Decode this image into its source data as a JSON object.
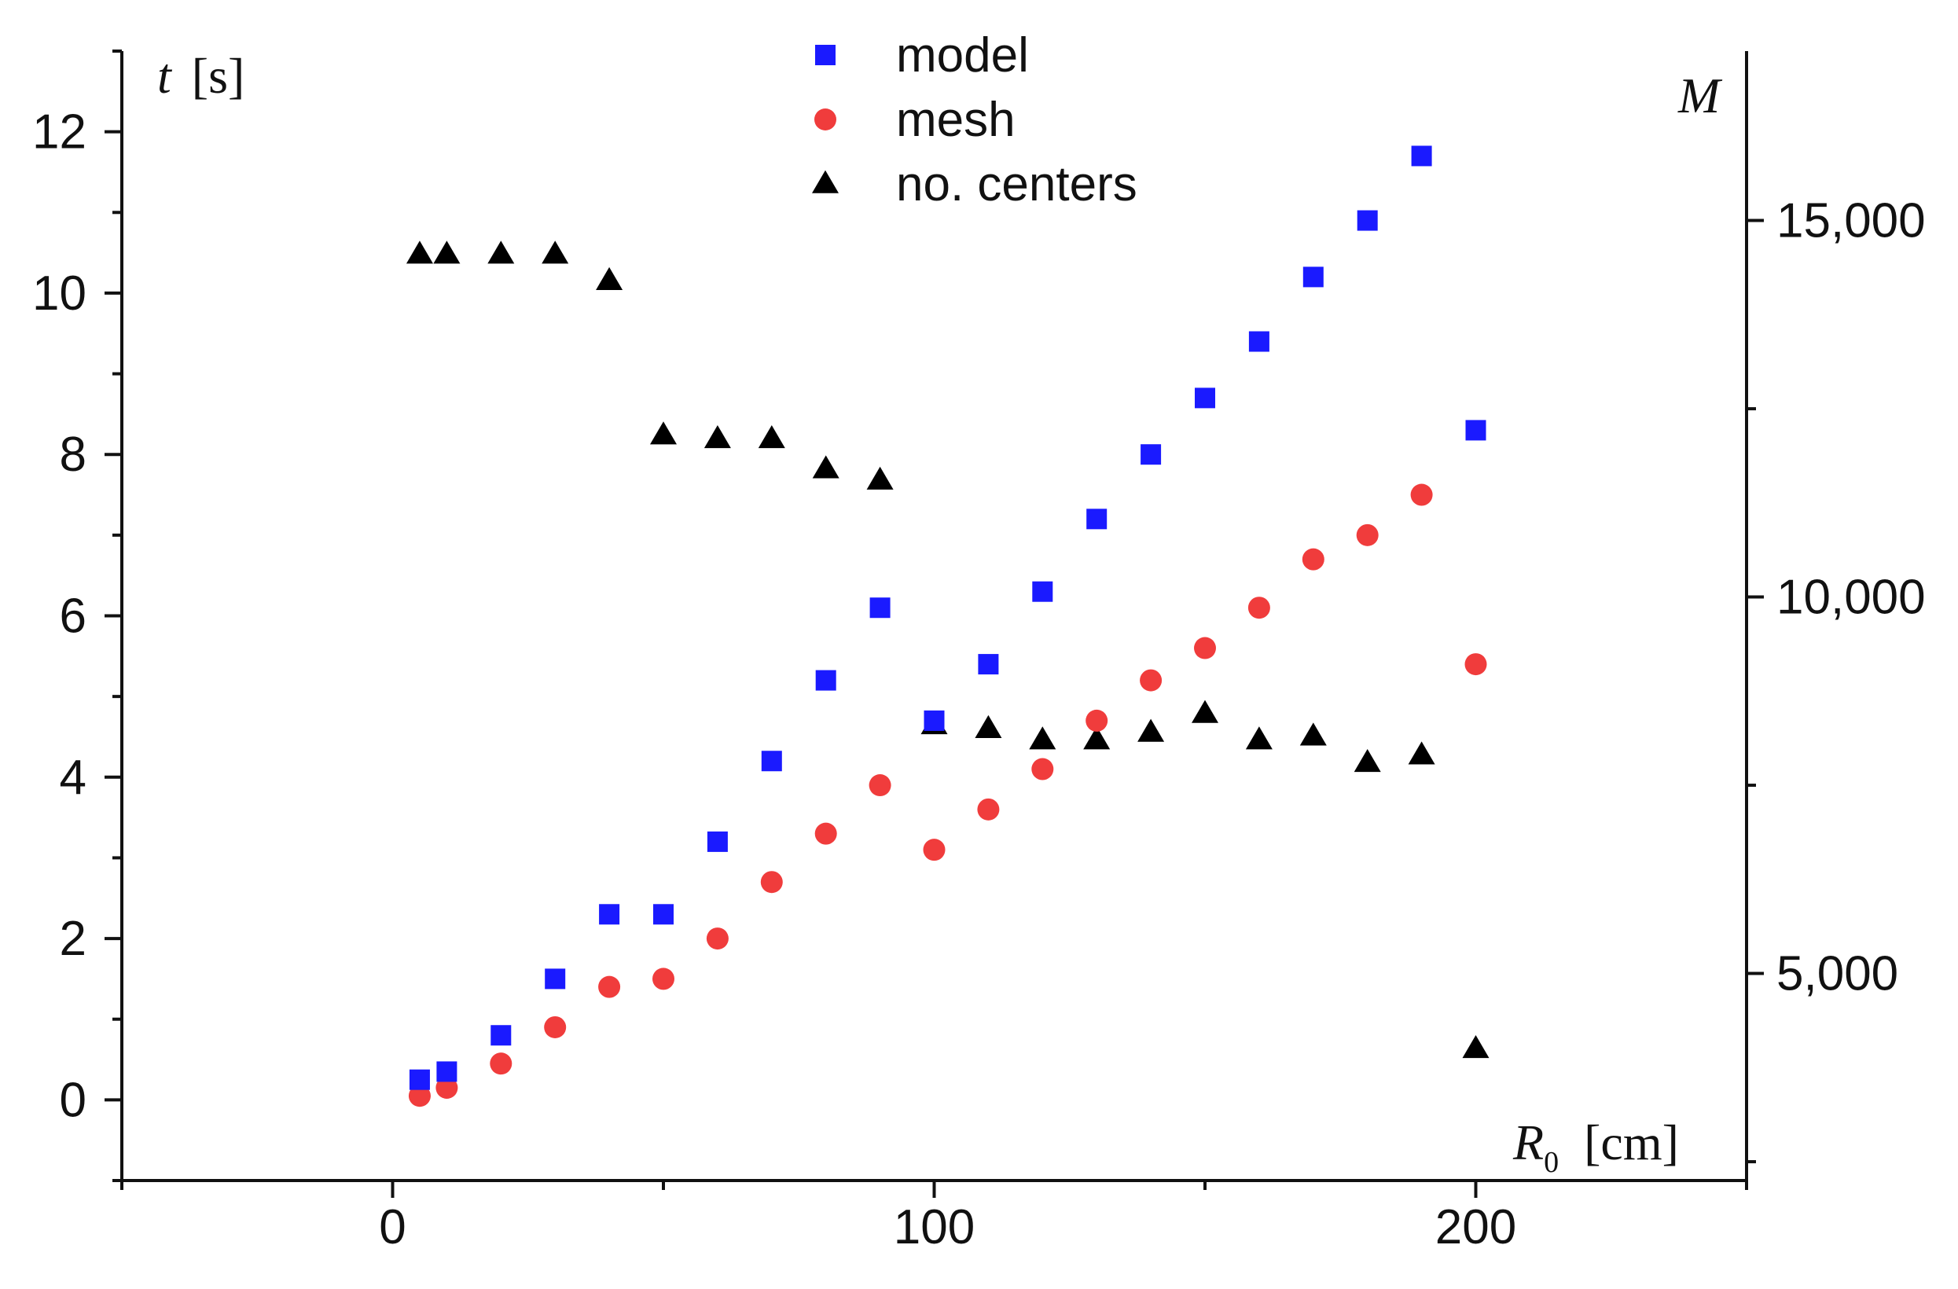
{
  "chart_data": {
    "type": "scatter",
    "title": "",
    "x_axis": {
      "label_var": "R",
      "label_sub": "0",
      "label_unit": "[cm]",
      "range": [
        -50,
        250
      ],
      "ticks": [
        0,
        100,
        200
      ],
      "tick_labels": [
        "0",
        "100",
        "200"
      ]
    },
    "y_axis_left": {
      "label_var": "t",
      "label_unit": "[s]",
      "range": [
        -1,
        13
      ],
      "ticks": [
        0,
        2,
        4,
        6,
        8,
        10,
        12
      ],
      "tick_labels": [
        "0",
        "2",
        "4",
        "6",
        "8",
        "10",
        "12"
      ]
    },
    "y_axis_right": {
      "label_var": "M",
      "range": [
        2250,
        17250
      ],
      "ticks": [
        5000,
        10000,
        15000
      ],
      "tick_labels": [
        "5,000",
        "10,000",
        "15,000"
      ]
    },
    "grid": false,
    "legend_position": "top-center",
    "series": [
      {
        "name": "model",
        "marker": "square",
        "color": "#1a1aff",
        "axis": "left",
        "x": [
          5,
          10,
          20,
          30,
          40,
          50,
          60,
          70,
          80,
          90,
          100,
          110,
          120,
          130,
          140,
          150,
          160,
          170,
          180,
          190,
          200
        ],
        "y": [
          0.25,
          0.35,
          0.8,
          1.5,
          2.3,
          2.3,
          3.2,
          4.2,
          5.2,
          6.1,
          4.7,
          5.4,
          6.3,
          7.2,
          8.0,
          8.7,
          9.4,
          10.2,
          10.9,
          11.7,
          8.3
        ]
      },
      {
        "name": "mesh",
        "marker": "circle",
        "color": "#f03c3c",
        "axis": "left",
        "x": [
          5,
          10,
          20,
          30,
          40,
          50,
          60,
          70,
          80,
          90,
          100,
          110,
          120,
          130,
          140,
          150,
          160,
          170,
          180,
          190,
          200
        ],
        "y": [
          0.05,
          0.15,
          0.45,
          0.9,
          1.4,
          1.5,
          2.0,
          2.7,
          3.3,
          3.9,
          3.1,
          3.6,
          4.1,
          4.7,
          5.2,
          5.6,
          6.1,
          6.7,
          7.0,
          7.5,
          5.4
        ]
      },
      {
        "name": "no. centers",
        "marker": "triangle",
        "color": "#000000",
        "axis": "right",
        "x": [
          5,
          10,
          20,
          30,
          40,
          50,
          60,
          70,
          80,
          90,
          100,
          110,
          120,
          130,
          140,
          150,
          160,
          170,
          180,
          190,
          200
        ],
        "y": [
          14550,
          14550,
          14550,
          14550,
          14200,
          12150,
          12100,
          12100,
          11700,
          11550,
          8300,
          8250,
          8100,
          8100,
          8200,
          8450,
          8100,
          8150,
          7800,
          7900,
          4000
        ]
      }
    ]
  }
}
